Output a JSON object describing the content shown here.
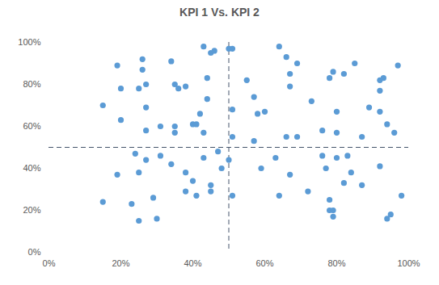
{
  "chart_data": {
    "type": "scatter",
    "title": "KPI 1 Vs. KPI 2",
    "color": "#5b9bd5",
    "marker": "circle",
    "x": [
      19,
      20,
      20,
      15,
      25,
      26,
      26,
      27,
      27,
      27,
      31,
      34,
      35,
      35,
      35,
      36,
      38,
      40,
      41,
      42,
      43,
      43,
      44,
      44,
      45,
      46,
      50,
      51,
      51,
      51,
      55,
      57,
      58,
      60,
      57,
      64,
      66,
      67,
      69,
      67,
      73,
      66,
      69,
      76,
      78,
      79,
      80,
      82,
      80,
      85,
      87,
      89,
      92,
      93,
      92,
      92,
      94,
      96,
      97,
      15,
      19,
      23,
      24,
      25,
      25,
      27,
      29,
      30,
      31,
      34,
      38,
      38,
      40,
      41,
      43,
      45,
      45,
      47,
      48,
      50,
      51,
      59,
      63,
      64,
      67,
      72,
      76,
      77,
      78,
      78,
      79,
      79,
      80,
      82,
      83,
      84,
      87,
      92,
      94,
      95,
      98
    ],
    "values": [
      89,
      78,
      63,
      70,
      78,
      87,
      92,
      80,
      69,
      58,
      60,
      91,
      80,
      57,
      60,
      78,
      79,
      61,
      61,
      66,
      57,
      98,
      83,
      73,
      95,
      96,
      97,
      97,
      68,
      55,
      82,
      74,
      66,
      67,
      53,
      98,
      93,
      85,
      90,
      79,
      72,
      55,
      55,
      58,
      83,
      86,
      67,
      85,
      57,
      90,
      55,
      69,
      82,
      83,
      77,
      67,
      61,
      57,
      89,
      24,
      37,
      23,
      47,
      38,
      15,
      44,
      26,
      16,
      46,
      42,
      38,
      29,
      34,
      27,
      45,
      32,
      29,
      48,
      40,
      44,
      27,
      40,
      45,
      27,
      37,
      29,
      46,
      40,
      20,
      25,
      20,
      17,
      45,
      33,
      46,
      38,
      32,
      41,
      16,
      18,
      27
    ],
    "xlim": [
      0,
      100
    ],
    "ylim": [
      0,
      100
    ],
    "xticks": [
      {
        "value": 0,
        "label": "0%"
      },
      {
        "value": 20,
        "label": "20%"
      },
      {
        "value": 40,
        "label": "40%"
      },
      {
        "value": 60,
        "label": "60%"
      },
      {
        "value": 80,
        "label": "80%"
      },
      {
        "value": 100,
        "label": "100%"
      }
    ],
    "yticks": [
      {
        "value": 0,
        "label": "0%"
      },
      {
        "value": 20,
        "label": "20%"
      },
      {
        "value": 40,
        "label": "40%"
      },
      {
        "value": 60,
        "label": "60%"
      },
      {
        "value": 80,
        "label": "80%"
      },
      {
        "value": 100,
        "label": "100%"
      }
    ],
    "grid": false,
    "reference_lines": [
      {
        "axis": "x",
        "value": 50,
        "line_style": "dashed",
        "color": "#44546a"
      },
      {
        "axis": "y",
        "value": 50,
        "line_style": "dashed",
        "color": "#44546a"
      }
    ]
  }
}
